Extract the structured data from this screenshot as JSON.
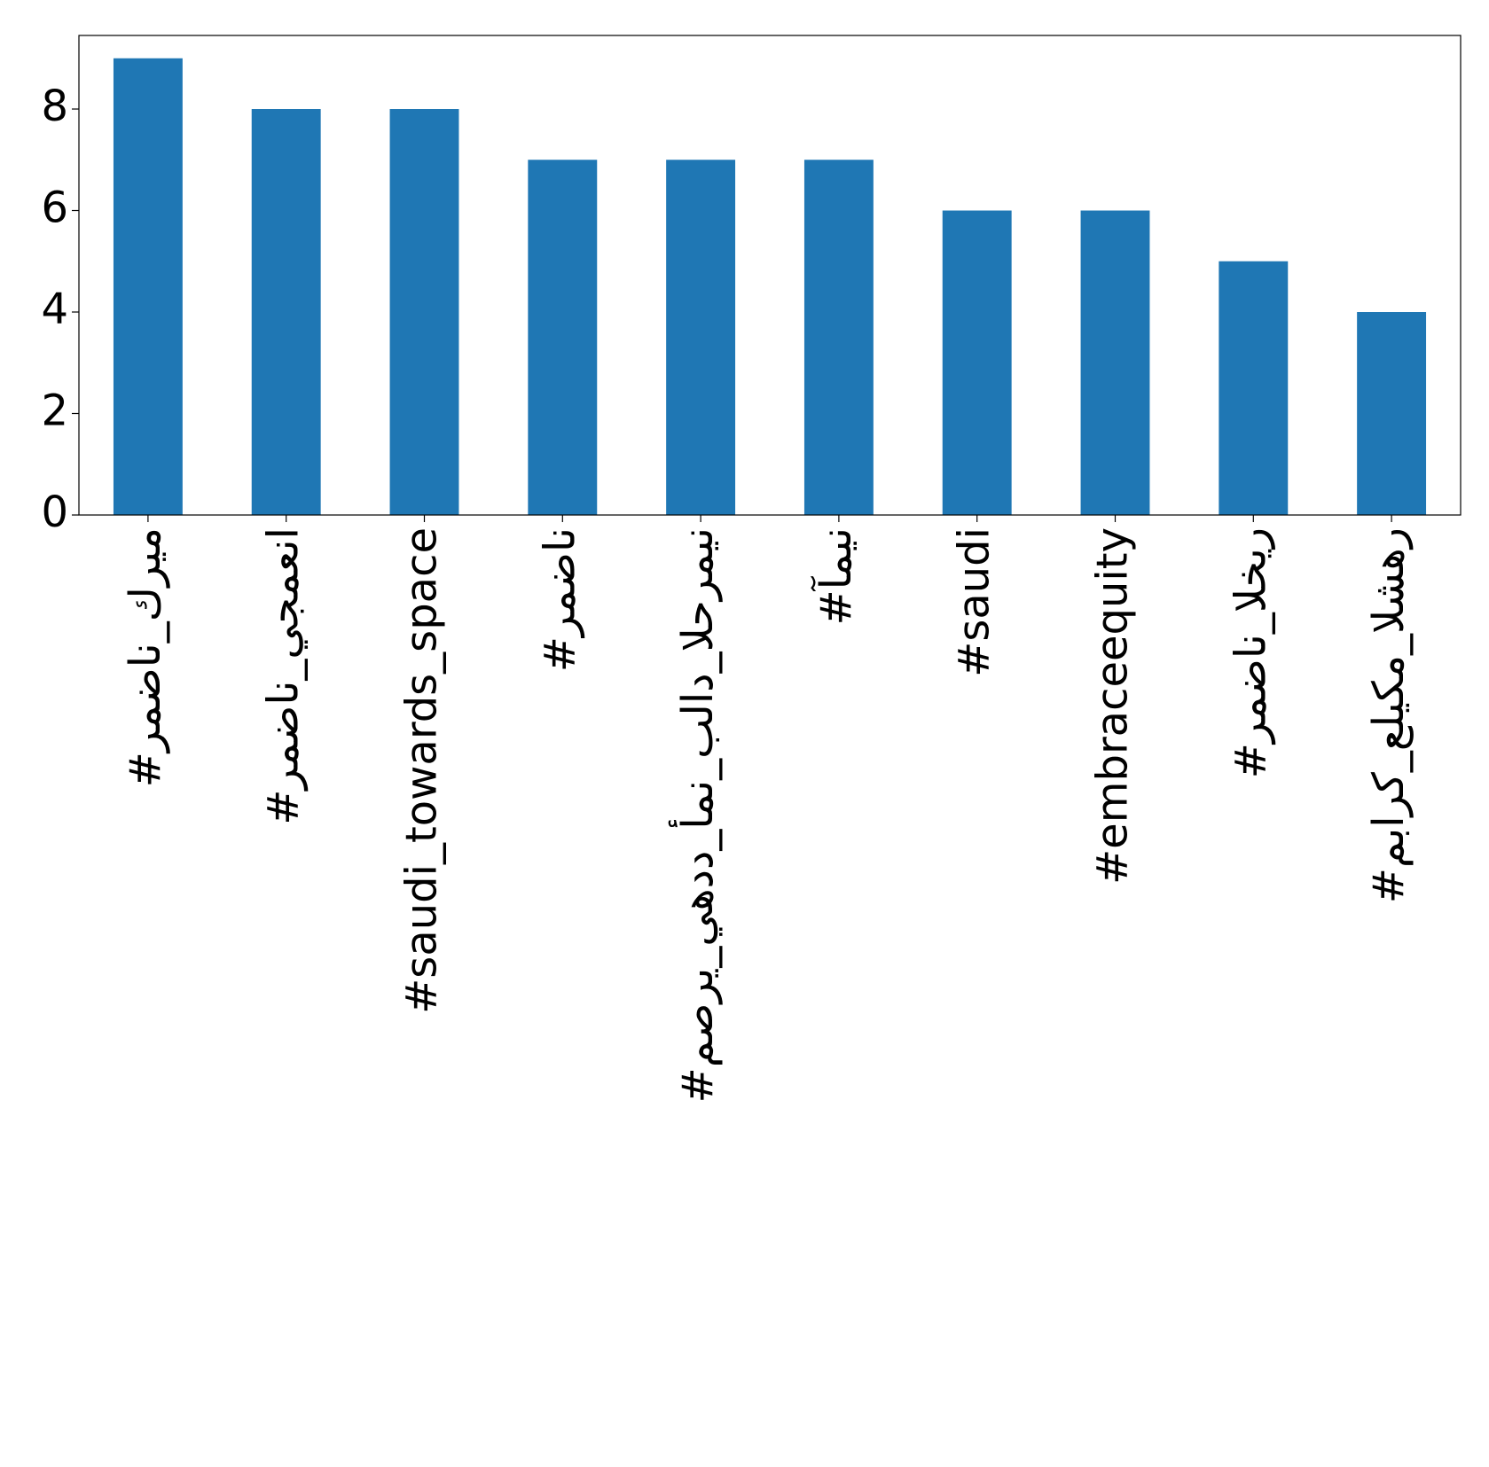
{
  "chart_data": {
    "type": "bar",
    "categories": [
      "#رمضان_كريم",
      "#رمضان_يجمعنا",
      "#saudi_towards_space",
      "#رمضان",
      "#مصري_يهدد_أمن_بلاد_الحرمين",
      "#آمين",
      "#saudi",
      "#embraceequity",
      "#رمضان_الخير",
      "#مبارك_عليكم_الشهر"
    ],
    "values": [
      9,
      8,
      8,
      7,
      7,
      7,
      6,
      6,
      5,
      4
    ],
    "color": "#1f77b4",
    "ylim": [
      0,
      9.45
    ],
    "yticks": [
      0,
      2,
      4,
      6,
      8
    ],
    "grid": false
  }
}
